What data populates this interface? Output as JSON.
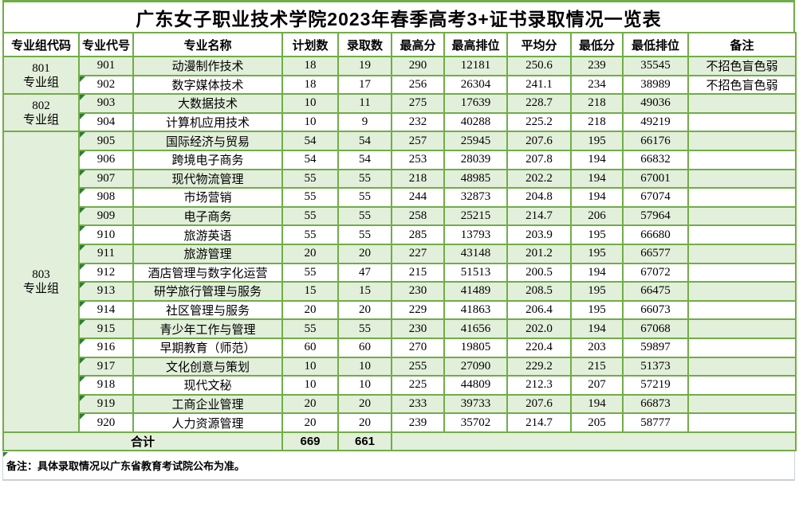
{
  "title": "广东女子职业技术学院2023年春季高考3+证书录取情况一览表",
  "columns": [
    "专业组代码",
    "专业代号",
    "专业名称",
    "计划数",
    "录取数",
    "最高分",
    "最高排位",
    "平均分",
    "最低分",
    "最低排位",
    "备注"
  ],
  "groups": [
    {
      "code": "801",
      "suffix": "专业组",
      "span": 2
    },
    {
      "code": "802",
      "suffix": "专业组",
      "span": 2
    },
    {
      "code": "803",
      "suffix": "专业组",
      "span": 16
    }
  ],
  "rows": [
    {
      "code": "901",
      "name": "动漫制作技术",
      "plan": "18",
      "admit": "19",
      "max": "290",
      "max_rank": "12181",
      "avg": "250.6",
      "min": "239",
      "min_rank": "35545",
      "remark": "不招色盲色弱",
      "flag": false
    },
    {
      "code": "902",
      "name": "数字媒体技术",
      "plan": "18",
      "admit": "17",
      "max": "256",
      "max_rank": "26304",
      "avg": "241.1",
      "min": "234",
      "min_rank": "38989",
      "remark": "不招色盲色弱",
      "flag": true
    },
    {
      "code": "903",
      "name": "大数据技术",
      "plan": "10",
      "admit": "11",
      "max": "275",
      "max_rank": "17639",
      "avg": "228.7",
      "min": "218",
      "min_rank": "49036",
      "remark": "",
      "flag": true
    },
    {
      "code": "904",
      "name": "计算机应用技术",
      "plan": "10",
      "admit": "9",
      "max": "232",
      "max_rank": "40288",
      "avg": "225.2",
      "min": "218",
      "min_rank": "49219",
      "remark": "",
      "flag": true
    },
    {
      "code": "905",
      "name": "国际经济与贸易",
      "plan": "54",
      "admit": "54",
      "max": "257",
      "max_rank": "25945",
      "avg": "207.6",
      "min": "195",
      "min_rank": "66176",
      "remark": "",
      "flag": true
    },
    {
      "code": "906",
      "name": "跨境电子商务",
      "plan": "54",
      "admit": "54",
      "max": "253",
      "max_rank": "28039",
      "avg": "207.8",
      "min": "194",
      "min_rank": "66832",
      "remark": "",
      "flag": true
    },
    {
      "code": "907",
      "name": "现代物流管理",
      "plan": "55",
      "admit": "55",
      "max": "218",
      "max_rank": "48985",
      "avg": "202.2",
      "min": "194",
      "min_rank": "67001",
      "remark": "",
      "flag": true
    },
    {
      "code": "908",
      "name": "市场营销",
      "plan": "55",
      "admit": "55",
      "max": "244",
      "max_rank": "32873",
      "avg": "204.8",
      "min": "194",
      "min_rank": "67074",
      "remark": "",
      "flag": true
    },
    {
      "code": "909",
      "name": "电子商务",
      "plan": "55",
      "admit": "55",
      "max": "258",
      "max_rank": "25215",
      "avg": "214.7",
      "min": "206",
      "min_rank": "57964",
      "remark": "",
      "flag": true
    },
    {
      "code": "910",
      "name": "旅游英语",
      "plan": "55",
      "admit": "55",
      "max": "285",
      "max_rank": "13793",
      "avg": "203.9",
      "min": "195",
      "min_rank": "66680",
      "remark": "",
      "flag": true
    },
    {
      "code": "911",
      "name": "旅游管理",
      "plan": "20",
      "admit": "20",
      "max": "227",
      "max_rank": "43148",
      "avg": "201.2",
      "min": "195",
      "min_rank": "66577",
      "remark": "",
      "flag": true
    },
    {
      "code": "912",
      "name": "酒店管理与数字化运营",
      "plan": "55",
      "admit": "47",
      "max": "215",
      "max_rank": "51513",
      "avg": "200.5",
      "min": "194",
      "min_rank": "67072",
      "remark": "",
      "flag": true
    },
    {
      "code": "913",
      "name": "研学旅行管理与服务",
      "plan": "15",
      "admit": "15",
      "max": "230",
      "max_rank": "41489",
      "avg": "208.5",
      "min": "195",
      "min_rank": "66475",
      "remark": "",
      "flag": true
    },
    {
      "code": "914",
      "name": "社区管理与服务",
      "plan": "20",
      "admit": "20",
      "max": "229",
      "max_rank": "41863",
      "avg": "206.4",
      "min": "195",
      "min_rank": "66073",
      "remark": "",
      "flag": true
    },
    {
      "code": "915",
      "name": "青少年工作与管理",
      "plan": "55",
      "admit": "55",
      "max": "230",
      "max_rank": "41656",
      "avg": "202.0",
      "min": "194",
      "min_rank": "67068",
      "remark": "",
      "flag": true
    },
    {
      "code": "916",
      "name": "早期教育（师范）",
      "plan": "60",
      "admit": "60",
      "max": "270",
      "max_rank": "19805",
      "avg": "220.4",
      "min": "203",
      "min_rank": "59897",
      "remark": "",
      "flag": true
    },
    {
      "code": "917",
      "name": "文化创意与策划",
      "plan": "10",
      "admit": "10",
      "max": "255",
      "max_rank": "27090",
      "avg": "229.2",
      "min": "215",
      "min_rank": "51373",
      "remark": "",
      "flag": true
    },
    {
      "code": "918",
      "name": "现代文秘",
      "plan": "10",
      "admit": "10",
      "max": "225",
      "max_rank": "44809",
      "avg": "212.3",
      "min": "207",
      "min_rank": "57219",
      "remark": "",
      "flag": true
    },
    {
      "code": "919",
      "name": "工商企业管理",
      "plan": "20",
      "admit": "20",
      "max": "233",
      "max_rank": "39733",
      "avg": "207.6",
      "min": "194",
      "min_rank": "66873",
      "remark": "",
      "flag": true
    },
    {
      "code": "920",
      "name": "人力资源管理",
      "plan": "20",
      "admit": "20",
      "max": "239",
      "max_rank": "35702",
      "avg": "214.7",
      "min": "205",
      "min_rank": "58777",
      "remark": "",
      "flag": true
    }
  ],
  "total": {
    "label": "合计",
    "plan": "669",
    "admit": "661"
  },
  "note": "备注：具体录取情况以广东省教育考试院公布为准。",
  "colors": {
    "border_green": "#70ad47",
    "fill_green": "#e2efda",
    "flag_green": "#2e7d32",
    "gray_border": "#c9cfda"
  },
  "chart_data": {
    "type": "table",
    "title": "广东女子职业技术学院2023年春季高考3+证书录取情况一览表",
    "columns": [
      "专业组代码",
      "专业代号",
      "专业名称",
      "计划数",
      "录取数",
      "最高分",
      "最高排位",
      "平均分",
      "最低分",
      "最低排位",
      "备注"
    ],
    "rows": [
      [
        "801专业组",
        "901",
        "动漫制作技术",
        18,
        19,
        290,
        12181,
        250.6,
        239,
        35545,
        "不招色盲色弱"
      ],
      [
        "801专业组",
        "902",
        "数字媒体技术",
        18,
        17,
        256,
        26304,
        241.1,
        234,
        38989,
        "不招色盲色弱"
      ],
      [
        "802专业组",
        "903",
        "大数据技术",
        10,
        11,
        275,
        17639,
        228.7,
        218,
        49036,
        ""
      ],
      [
        "802专业组",
        "904",
        "计算机应用技术",
        10,
        9,
        232,
        40288,
        225.2,
        218,
        49219,
        ""
      ],
      [
        "803专业组",
        "905",
        "国际经济与贸易",
        54,
        54,
        257,
        25945,
        207.6,
        195,
        66176,
        ""
      ],
      [
        "803专业组",
        "906",
        "跨境电子商务",
        54,
        54,
        253,
        28039,
        207.8,
        194,
        66832,
        ""
      ],
      [
        "803专业组",
        "907",
        "现代物流管理",
        55,
        55,
        218,
        48985,
        202.2,
        194,
        67001,
        ""
      ],
      [
        "803专业组",
        "908",
        "市场营销",
        55,
        55,
        244,
        32873,
        204.8,
        194,
        67074,
        ""
      ],
      [
        "803专业组",
        "909",
        "电子商务",
        55,
        55,
        258,
        25215,
        214.7,
        206,
        57964,
        ""
      ],
      [
        "803专业组",
        "910",
        "旅游英语",
        55,
        55,
        285,
        13793,
        203.9,
        195,
        66680,
        ""
      ],
      [
        "803专业组",
        "911",
        "旅游管理",
        20,
        20,
        227,
        43148,
        201.2,
        195,
        66577,
        ""
      ],
      [
        "803专业组",
        "912",
        "酒店管理与数字化运营",
        55,
        47,
        215,
        51513,
        200.5,
        194,
        67072,
        ""
      ],
      [
        "803专业组",
        "913",
        "研学旅行管理与服务",
        15,
        15,
        230,
        41489,
        208.5,
        195,
        66475,
        ""
      ],
      [
        "803专业组",
        "914",
        "社区管理与服务",
        20,
        20,
        229,
        41863,
        206.4,
        195,
        66073,
        ""
      ],
      [
        "803专业组",
        "915",
        "青少年工作与管理",
        55,
        55,
        230,
        41656,
        202.0,
        194,
        67068,
        ""
      ],
      [
        "803专业组",
        "916",
        "早期教育（师范）",
        60,
        60,
        270,
        19805,
        220.4,
        203,
        59897,
        ""
      ],
      [
        "803专业组",
        "917",
        "文化创意与策划",
        10,
        10,
        255,
        27090,
        229.2,
        215,
        51373,
        ""
      ],
      [
        "803专业组",
        "918",
        "现代文秘",
        10,
        10,
        225,
        44809,
        212.3,
        207,
        57219,
        ""
      ],
      [
        "803专业组",
        "919",
        "工商企业管理",
        20,
        20,
        233,
        39733,
        207.6,
        194,
        66873,
        ""
      ],
      [
        "803专业组",
        "920",
        "人力资源管理",
        20,
        20,
        239,
        35702,
        214.7,
        205,
        58777,
        ""
      ]
    ],
    "totals": {
      "label": "合计",
      "计划数": 669,
      "录取数": 661
    },
    "footnote": "备注：具体录取情况以广东省教育考试院公布为准。"
  }
}
